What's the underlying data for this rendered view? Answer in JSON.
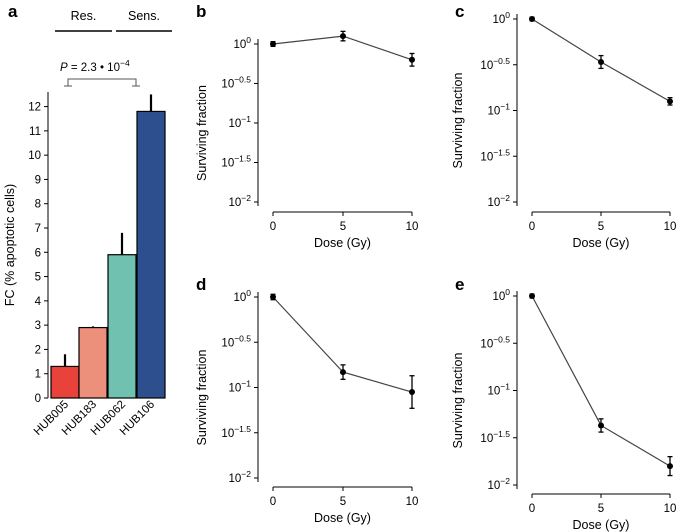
{
  "chart_data": [
    {
      "panel": "a",
      "type": "bar",
      "categories": [
        "HUB005",
        "HUB183",
        "HUB062",
        "HUB106"
      ],
      "values": [
        1.3,
        2.9,
        5.9,
        11.8
      ],
      "errors": [
        0.5,
        0.05,
        0.9,
        0.7
      ],
      "colors": [
        "#e8423a",
        "#ec8f7b",
        "#70c1b0",
        "#2d4f8e"
      ],
      "ylabel": "FC (% apoptotic cells)",
      "ylim": [
        0,
        12.6
      ],
      "yticks": [
        "0",
        "1",
        "2",
        "3",
        "4",
        "5",
        "6",
        "7",
        "8",
        "9",
        "10",
        "11",
        "12"
      ],
      "groups": [
        {
          "label": "Res.",
          "categories": [
            "HUB005",
            "HUB183"
          ]
        },
        {
          "label": "Sens.",
          "categories": [
            "HUB062",
            "HUB106"
          ]
        }
      ],
      "annotation": {
        "p_label": "P",
        "p_value_text": " = 2.3 • 10",
        "p_exponent": "−4"
      }
    },
    {
      "panel": "b",
      "type": "line",
      "x": [
        0,
        5,
        10
      ],
      "y_log10": [
        0,
        0.1,
        -0.2
      ],
      "err_log10": [
        0.03,
        0.06,
        0.08
      ],
      "xlabel": "Dose (Gy)",
      "ylabel": "Surviving fraction",
      "xticks": [
        "0",
        "5",
        "10"
      ],
      "ytick_exponents": [
        "0",
        "−0.5",
        "−1",
        "−1.5",
        "−2"
      ],
      "ylim_log10": [
        -2.05,
        0.2
      ]
    },
    {
      "panel": "c",
      "type": "line",
      "x": [
        0,
        5,
        10
      ],
      "y_log10": [
        0,
        -0.47,
        -0.9
      ],
      "err_log10": [
        0.02,
        0.07,
        0.04
      ],
      "xlabel": "Dose (Gy)",
      "ylabel": "Surviving fraction",
      "xticks": [
        "0",
        "5",
        "10"
      ],
      "ytick_exponents": [
        "0",
        "−0.5",
        "−1",
        "−1.5",
        "−2"
      ],
      "ylim_log10": [
        -2.05,
        0.2
      ]
    },
    {
      "panel": "d",
      "type": "line",
      "x": [
        0,
        5,
        10
      ],
      "y_log10": [
        0,
        -0.83,
        -1.05
      ],
      "err_log10": [
        0.03,
        0.08,
        0.18
      ],
      "xlabel": "Dose (Gy)",
      "ylabel": "Surviving fraction",
      "xticks": [
        "0",
        "5",
        "10"
      ],
      "ytick_exponents": [
        "0",
        "−0.5",
        "−1",
        "−1.5",
        "−2"
      ],
      "ylim_log10": [
        -2.05,
        0.2
      ]
    },
    {
      "panel": "e",
      "type": "line",
      "x": [
        0,
        5,
        10
      ],
      "y_log10": [
        0,
        -1.37,
        -1.8
      ],
      "err_log10": [
        0.02,
        0.07,
        0.1
      ],
      "xlabel": "Dose (Gy)",
      "ylabel": "Surviving fraction",
      "xticks": [
        "0",
        "5",
        "10"
      ],
      "ytick_exponents": [
        "0",
        "−0.5",
        "−1",
        "−1.5",
        "−2"
      ],
      "ylim_log10": [
        -2.05,
        0.2
      ]
    }
  ]
}
